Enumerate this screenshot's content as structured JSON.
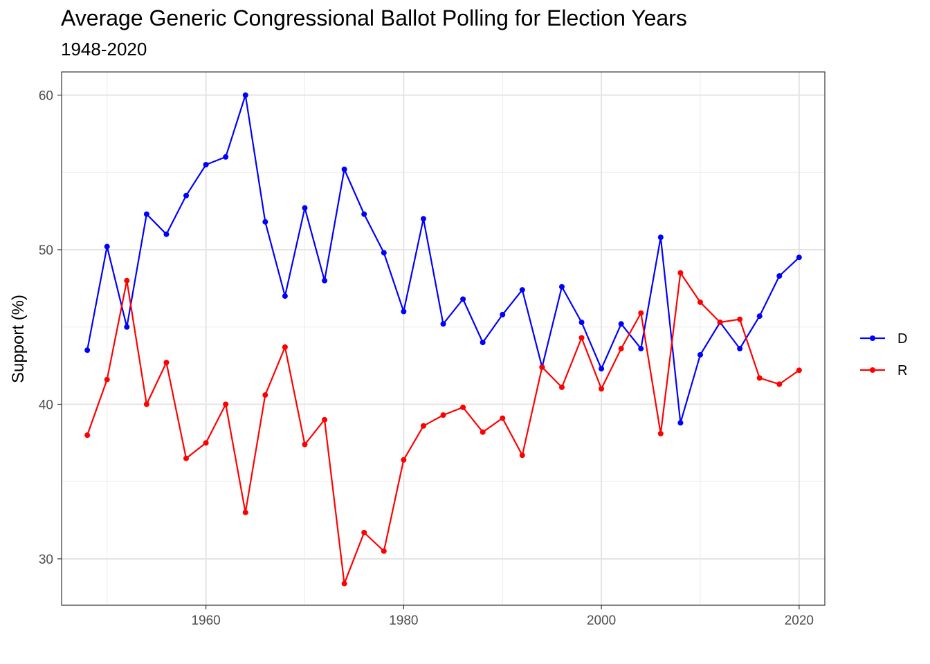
{
  "title": "Average Generic Congressional Ballot Polling for Election Years",
  "subtitle": "1948-2020",
  "chart_data": {
    "type": "line",
    "title": "Average Generic Congressional Ballot Polling for Election Years",
    "subtitle": "1948-2020",
    "xlabel": "",
    "ylabel": "Support (%)",
    "xlim": [
      1945.4,
      2022.6
    ],
    "ylim": [
      27,
      61.5
    ],
    "x_ticks": [
      1960,
      1980,
      2000,
      2020
    ],
    "y_ticks": [
      30,
      40,
      50,
      60
    ],
    "grid": true,
    "legend_position": "right",
    "x": [
      1948,
      1950,
      1952,
      1954,
      1956,
      1958,
      1960,
      1962,
      1964,
      1966,
      1968,
      1970,
      1972,
      1974,
      1976,
      1978,
      1980,
      1982,
      1984,
      1986,
      1988,
      1990,
      1992,
      1994,
      1996,
      1998,
      2000,
      2002,
      2004,
      2006,
      2008,
      2010,
      2012,
      2014,
      2016,
      2018,
      2020
    ],
    "series": [
      {
        "name": "D",
        "color": "#0000ff",
        "values": [
          43.5,
          50.2,
          45.0,
          52.3,
          51.0,
          53.5,
          55.5,
          56.0,
          60.0,
          51.8,
          47.0,
          52.7,
          48.0,
          55.2,
          52.3,
          49.8,
          46.0,
          52.0,
          45.2,
          46.8,
          44.0,
          45.8,
          47.4,
          42.4,
          47.6,
          45.3,
          42.3,
          45.2,
          43.6,
          50.8,
          38.8,
          43.2,
          45.3,
          43.6,
          45.7,
          48.3,
          49.5
        ]
      },
      {
        "name": "R",
        "color": "#ff0000",
        "values": [
          38.0,
          41.6,
          48.0,
          40.0,
          42.7,
          36.5,
          37.5,
          40.0,
          33.0,
          40.6,
          43.7,
          37.4,
          39.0,
          28.4,
          31.7,
          30.5,
          36.4,
          38.6,
          39.3,
          39.8,
          38.2,
          39.1,
          36.7,
          42.4,
          41.1,
          44.3,
          41.0,
          43.6,
          45.9,
          38.1,
          48.5,
          46.6,
          45.3,
          45.5,
          41.7,
          41.3,
          42.2
        ]
      }
    ]
  }
}
